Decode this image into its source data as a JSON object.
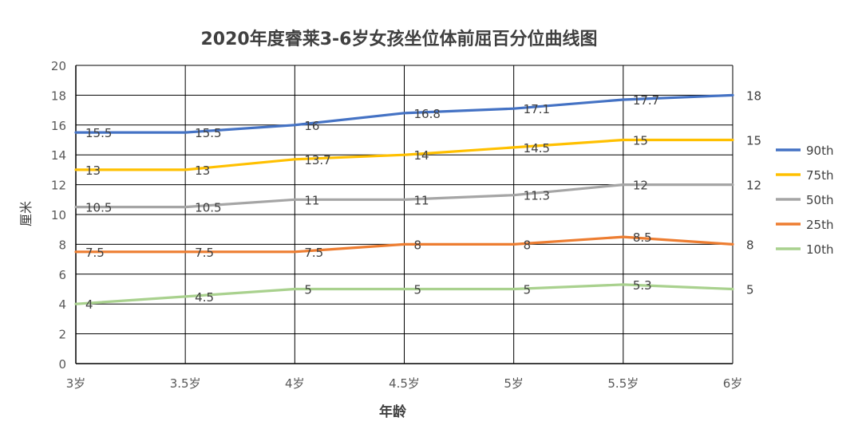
{
  "chart_data": {
    "type": "line",
    "title": "2020年度睿莱3-6岁女孩坐位体前屈百分位曲线图",
    "xlabel": "年龄",
    "ylabel": "厘米",
    "categories": [
      "3岁",
      "3.5岁",
      "4岁",
      "4.5岁",
      "5岁",
      "5.5岁",
      "6岁"
    ],
    "ylim": [
      0,
      20
    ],
    "yticks": [
      "0",
      "2",
      "4",
      "6",
      "8",
      "10",
      "12",
      "14",
      "16",
      "18",
      "20"
    ],
    "grid": true,
    "legend_position": "right",
    "series": [
      {
        "name": "90th",
        "color": "#4472C4",
        "values": [
          15.5,
          15.5,
          16,
          16.8,
          17.1,
          17.7,
          18
        ],
        "labels": [
          "15.5",
          "15.5",
          "16",
          "16.8",
          "17.1",
          "17.7",
          ""
        ],
        "end_label": "18"
      },
      {
        "name": "75th",
        "color": "#FFC000",
        "values": [
          13,
          13,
          13.7,
          14,
          14.5,
          15,
          15
        ],
        "labels": [
          "13",
          "13",
          "13.7",
          "14",
          "14.5",
          "15",
          ""
        ],
        "end_label": "15"
      },
      {
        "name": "50th",
        "color": "#A5A5A5",
        "values": [
          10.5,
          10.5,
          11,
          11,
          11.3,
          12,
          12
        ],
        "labels": [
          "10.5",
          "10.5",
          "11",
          "11",
          "11.3",
          "12",
          ""
        ],
        "end_label": "12"
      },
      {
        "name": "25th",
        "color": "#ED7D31",
        "values": [
          7.5,
          7.5,
          7.5,
          8,
          8,
          8.5,
          8
        ],
        "labels": [
          "7.5",
          "7.5",
          "7.5",
          "8",
          "8",
          "8.5",
          ""
        ],
        "end_label": "8"
      },
      {
        "name": "10th",
        "color": "#A9D18E",
        "values": [
          4,
          4.5,
          5,
          5,
          5,
          5.3,
          5
        ],
        "labels": [
          "4",
          "4.5",
          "5",
          "5",
          "5",
          "5.3",
          ""
        ],
        "end_label": "5"
      }
    ]
  }
}
